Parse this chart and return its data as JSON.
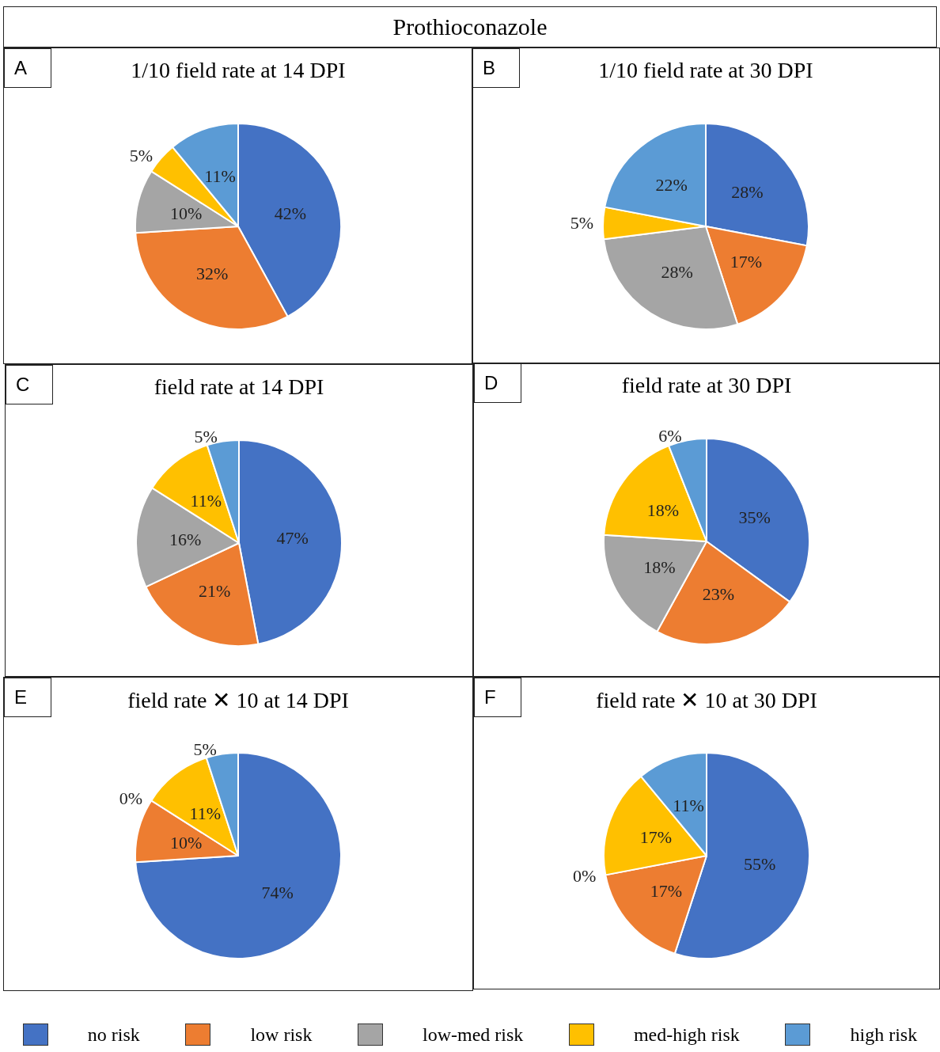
{
  "chart_data": [
    {
      "type": "other",
      "title": "Prothioconazole"
    },
    {
      "type": "pie",
      "title": "1/10 field rate at 14 DPI",
      "annotations": [
        "A"
      ],
      "legend": "bottom",
      "categories": [
        "no risk",
        "low risk",
        "low-med risk",
        "med-high risk",
        "high risk"
      ],
      "values": [
        42,
        32,
        10,
        5,
        11
      ],
      "value_labels": [
        "42%",
        "32%",
        "10%",
        "5%",
        "11%"
      ],
      "colors": [
        "#4472c4",
        "#ed7d31",
        "#a5a5a5",
        "#ffc000",
        "#5b9bd5"
      ]
    },
    {
      "type": "pie",
      "title": "1/10 field rate at 30 DPI",
      "annotations": [
        "B"
      ],
      "categories": [
        null,
        null,
        null,
        null,
        null
      ],
      "values": [
        28,
        17,
        28,
        5,
        22
      ],
      "value_labels": [
        "28%",
        "17%",
        "28%",
        "5%",
        "22%"
      ],
      "colors": [
        "#4472c4",
        "#ed7d31",
        "#a5a5a5",
        "#ffc000",
        "#5b9bd5"
      ]
    },
    {
      "type": "pie",
      "title": "field rate at 14 DPI",
      "annotations": [
        "C"
      ],
      "categories": [
        null,
        null,
        null,
        null,
        null
      ],
      "values": [
        47,
        21,
        16,
        11,
        5
      ],
      "value_labels": [
        "47%",
        "21%",
        "16%",
        "11%",
        "5%"
      ],
      "colors": [
        "#4472c4",
        "#ed7d31",
        "#a5a5a5",
        "#ffc000",
        "#5b9bd5"
      ]
    },
    {
      "type": "pie",
      "title": "field rate at 30 DPI",
      "annotations": [
        "D"
      ],
      "categories": [
        null,
        null,
        null,
        null,
        null
      ],
      "values": [
        35,
        23,
        18,
        18,
        6
      ],
      "value_labels": [
        "35%",
        "23%",
        "18%",
        "18%",
        "6%"
      ],
      "colors": [
        "#4472c4",
        "#ed7d31",
        "#a5a5a5",
        "#ffc000",
        "#5b9bd5"
      ]
    },
    {
      "type": "pie",
      "title": "field rate ✕ 10 at 14 DPI",
      "annotations": [
        "E"
      ],
      "categories": [
        null,
        null,
        null,
        null,
        null
      ],
      "values": [
        74,
        10,
        0,
        11,
        5
      ],
      "value_labels": [
        "74%",
        "10%",
        "0%",
        "11%",
        "5%"
      ],
      "colors": [
        "#4472c4",
        "#ed7d31",
        "#a5a5a5",
        "#ffc000",
        "#5b9bd5"
      ]
    },
    {
      "type": "pie",
      "title": "field rate ✕ 10 at 30 DPI",
      "annotations": [
        "F"
      ],
      "categories": [
        null,
        null,
        null,
        null,
        null
      ],
      "values": [
        55,
        17,
        0,
        17,
        11
      ],
      "value_labels": [
        "55%",
        "17%",
        "0%",
        "17%",
        "11%"
      ],
      "colors": [
        "#4472c4",
        "#ed7d31",
        "#a5a5a5",
        "#ffc000",
        "#5b9bd5"
      ]
    }
  ]
}
